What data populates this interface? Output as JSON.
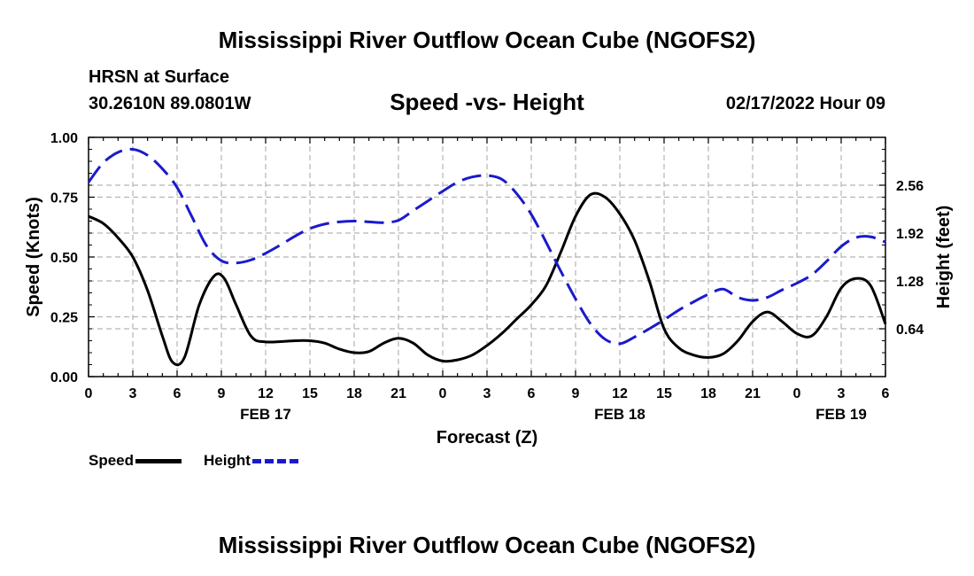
{
  "header": {
    "title": "Mississippi River Outflow Ocean Cube (NGOFS2)",
    "station": "HRSN at Surface",
    "coords": "30.2610N  89.0801W",
    "chart_title": "Speed -vs- Height",
    "datetime": "02/17/2022 Hour 09"
  },
  "footer": {
    "title": "Mississippi River Outflow Ocean Cube (NGOFS2)"
  },
  "legend": {
    "speed_label": "Speed",
    "height_label": "Height"
  },
  "colors": {
    "speed": "#000000",
    "height": "#1a1acc",
    "grid": "#b4b4b4"
  },
  "chart_data": {
    "type": "line",
    "title": "Speed -vs- Height",
    "xlabel": "Forecast (Z)",
    "ylabel": "Speed (Knots)",
    "y2label": "Height (feet)",
    "xlim": [
      0,
      54
    ],
    "ylim": [
      0,
      1.0
    ],
    "y2lim": [
      0,
      3.2
    ],
    "x_ticks": [
      0,
      3,
      6,
      9,
      12,
      15,
      18,
      21,
      24,
      27,
      30,
      33,
      36,
      39,
      42,
      45,
      48,
      51,
      54
    ],
    "x_tick_labels": [
      "0",
      "3",
      "6",
      "9",
      "12",
      "15",
      "18",
      "21",
      "0",
      "3",
      "6",
      "9",
      "12",
      "15",
      "18",
      "21",
      "0",
      "3",
      "6"
    ],
    "date_labels": [
      {
        "x": 12,
        "label": "FEB 17"
      },
      {
        "x": 36,
        "label": "FEB 18"
      },
      {
        "x": 51,
        "label": "FEB 19"
      }
    ],
    "y_ticks": [
      0,
      0.25,
      0.5,
      0.75,
      1.0
    ],
    "y_tick_labels": [
      "0.00",
      "0.25",
      "0.50",
      "0.75",
      "1.00"
    ],
    "y2_ticks": [
      0.64,
      1.28,
      1.92,
      2.56
    ],
    "y2_tick_labels": [
      "0.64",
      "1.28",
      "1.92",
      "2.56"
    ],
    "grid": true,
    "series": [
      {
        "name": "Speed",
        "axis": "left",
        "style": "solid",
        "x": [
          0,
          1,
          2,
          3,
          4,
          5,
          5.7,
          6.5,
          7.5,
          8.5,
          9.2,
          10,
          11,
          12,
          14,
          15,
          16,
          17,
          18,
          19,
          20,
          21,
          22,
          23,
          24,
          25,
          26,
          27,
          28,
          29,
          30,
          31,
          32,
          33,
          34,
          35,
          36,
          37,
          38,
          39,
          40,
          41,
          42,
          43,
          44,
          45,
          46,
          47,
          48,
          49,
          50,
          51,
          52,
          53,
          54
        ],
        "y": [
          0.67,
          0.64,
          0.58,
          0.5,
          0.36,
          0.17,
          0.06,
          0.08,
          0.3,
          0.42,
          0.41,
          0.3,
          0.17,
          0.145,
          0.15,
          0.15,
          0.14,
          0.115,
          0.1,
          0.105,
          0.14,
          0.16,
          0.14,
          0.09,
          0.065,
          0.07,
          0.09,
          0.13,
          0.18,
          0.24,
          0.3,
          0.38,
          0.52,
          0.67,
          0.76,
          0.75,
          0.68,
          0.57,
          0.4,
          0.2,
          0.12,
          0.09,
          0.08,
          0.095,
          0.15,
          0.23,
          0.27,
          0.23,
          0.18,
          0.17,
          0.25,
          0.37,
          0.41,
          0.38,
          0.22
        ]
      },
      {
        "name": "Height",
        "axis": "right",
        "style": "dashed",
        "x": [
          0,
          1,
          2,
          3,
          4,
          5,
          6,
          7,
          8,
          9,
          10,
          11,
          12,
          13,
          14,
          15,
          16,
          17,
          18,
          19,
          20,
          21,
          22,
          23,
          24,
          25,
          26,
          27,
          28,
          29,
          30,
          31,
          32,
          33,
          34,
          35,
          36,
          37,
          38,
          39,
          40,
          41,
          42,
          43,
          44,
          45,
          46,
          47,
          48,
          49,
          50,
          51,
          52,
          53,
          54
        ],
        "y": [
          2.6,
          2.86,
          3.0,
          3.04,
          2.96,
          2.78,
          2.53,
          2.14,
          1.75,
          1.55,
          1.52,
          1.56,
          1.65,
          1.76,
          1.88,
          1.98,
          2.04,
          2.07,
          2.08,
          2.07,
          2.06,
          2.09,
          2.22,
          2.35,
          2.48,
          2.6,
          2.67,
          2.69,
          2.64,
          2.45,
          2.17,
          1.8,
          1.41,
          1.04,
          0.71,
          0.5,
          0.44,
          0.53,
          0.64,
          0.76,
          0.89,
          1.0,
          1.1,
          1.17,
          1.06,
          1.02,
          1.06,
          1.16,
          1.25,
          1.36,
          1.54,
          1.74,
          1.86,
          1.87,
          1.8
        ]
      }
    ]
  }
}
